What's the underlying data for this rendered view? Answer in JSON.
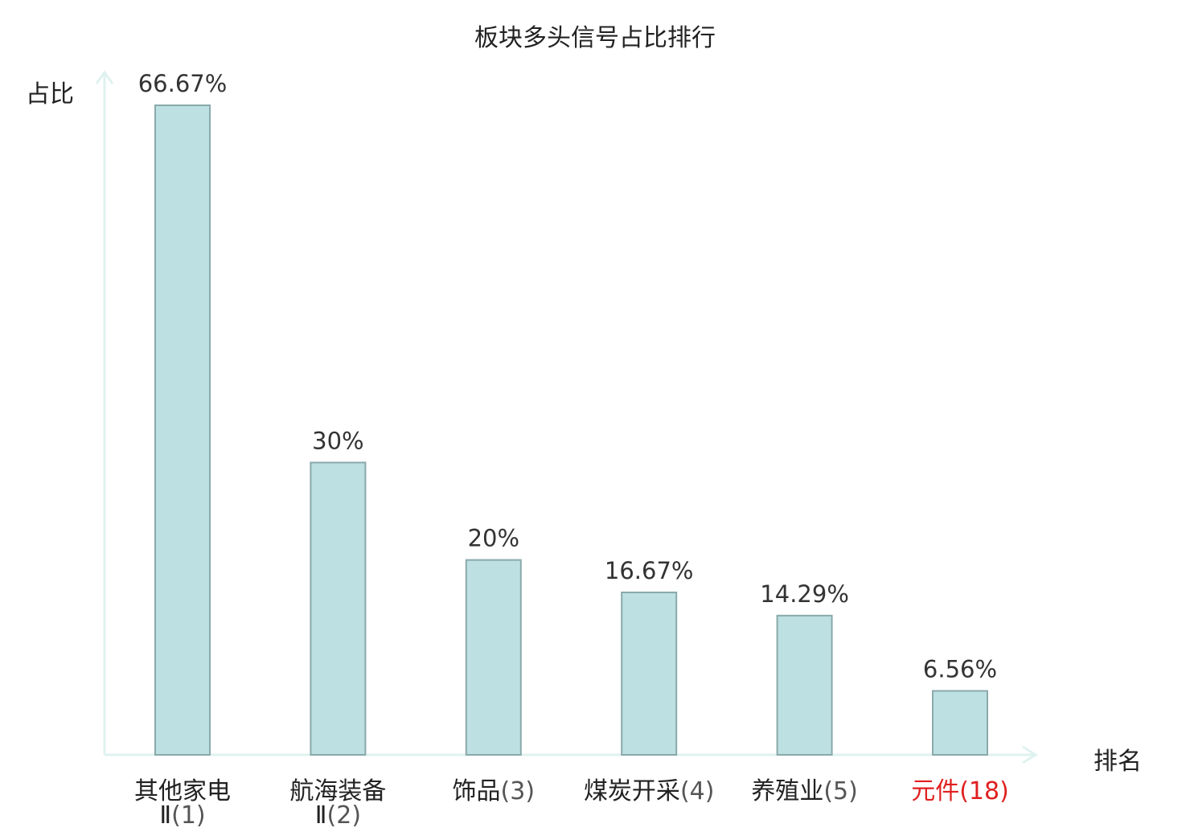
{
  "chart_data": {
    "type": "bar",
    "title": "板块多头信号占比排行",
    "ylabel": "占比",
    "xlabel": "排名",
    "categories": [
      {
        "name": "其他家电",
        "line2": "Ⅱ",
        "rank": "(1)"
      },
      {
        "name": "航海装备",
        "line2": "Ⅱ",
        "rank": "(2)"
      },
      {
        "name": "饰品",
        "line2": "",
        "rank": "(3)"
      },
      {
        "name": "煤炭开采",
        "line2": "",
        "rank": "(4)"
      },
      {
        "name": "养殖业",
        "line2": "",
        "rank": "(5)"
      },
      {
        "name": "元件",
        "line2": "",
        "rank": "(18)"
      }
    ],
    "values": [
      66.67,
      30,
      20,
      16.67,
      14.29,
      6.56
    ],
    "value_labels": [
      "66.67%",
      "30%",
      "20%",
      "16.67%",
      "14.29%",
      "6.56%"
    ],
    "highlight_index": 5,
    "ylim": [
      0,
      70
    ],
    "grid": false,
    "colors": {
      "bar_fill": "#bde0e2",
      "bar_stroke": "#8aa9ab",
      "axis": "#dff2ef",
      "text": "#333333",
      "highlight": "#e02020"
    }
  }
}
